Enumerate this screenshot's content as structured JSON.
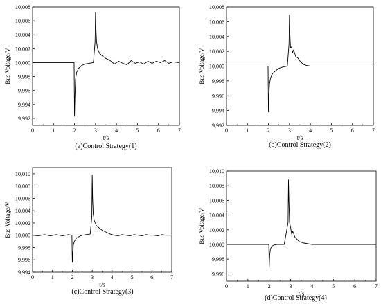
{
  "chart_data": [
    {
      "type": "line",
      "title": "(a)Control Strategy(1)",
      "xlabel": "t/s",
      "ylabel": "Bus Voltage/V",
      "xlim": [
        0,
        7
      ],
      "ylim": [
        9991,
        10008
      ],
      "x_ticks": [
        0,
        1,
        2,
        3,
        4,
        5,
        6,
        7
      ],
      "x_tick_labels": [
        "0",
        "1",
        "2",
        "3",
        "4",
        "5",
        "6",
        "7"
      ],
      "y_ticks": [
        9992,
        9994,
        9996,
        9998,
        10000,
        10002,
        10004,
        10006,
        10008
      ],
      "y_tick_labels": [
        "9,992",
        "9,994",
        "9,996",
        "9,998",
        "10,000",
        "10,002",
        "10,004",
        "10,006",
        "10,008"
      ],
      "series": [
        {
          "x": [
            0,
            1.98,
            1.99,
            2.0,
            2.02,
            2.05,
            2.1,
            2.2,
            2.35,
            2.5,
            2.7,
            2.9,
            2.98,
            3.0,
            3.02,
            3.05,
            3.1,
            3.2,
            3.35,
            3.5,
            3.7,
            3.9,
            4.1,
            4.3,
            4.5,
            4.7,
            4.9,
            5.1,
            5.3,
            5.5,
            5.7,
            5.9,
            6.1,
            6.3,
            6.5,
            6.7,
            7.0
          ],
          "y": [
            10000,
            10000,
            9996,
            9992.3,
            9995,
            9997.6,
            9998.6,
            9999.2,
            9999.6,
            9999.8,
            9999.9,
            10000,
            10003,
            10007.2,
            10005,
            10003,
            10002,
            10001.3,
            10000.9,
            10000.6,
            10000.3,
            9999.8,
            10000.2,
            9999.9,
            9999.7,
            10000.3,
            9999.9,
            10000.1,
            9999.8,
            10000.2,
            9999.9,
            10000.2,
            10000,
            10000.3,
            9999.9,
            10000.1,
            10000
          ]
        }
      ]
    },
    {
      "type": "line",
      "title": "(b)Control Strategy(2)",
      "xlabel": "t/s",
      "ylabel": "Bus Voltage/V",
      "xlim": [
        0,
        7
      ],
      "ylim": [
        9992,
        10008
      ],
      "x_ticks": [
        0,
        1,
        2,
        3,
        4,
        5,
        6,
        7
      ],
      "x_tick_labels": [
        "0",
        "1",
        "2",
        "3",
        "4",
        "5",
        "6",
        "7"
      ],
      "y_ticks": [
        9992,
        9994,
        9996,
        9998,
        10000,
        10002,
        10004,
        10006,
        10008
      ],
      "y_tick_labels": [
        "9,992",
        "9,994",
        "9,996",
        "9,998",
        "10,000",
        "10,002",
        "10,004",
        "10,006",
        "10,008"
      ],
      "series": [
        {
          "x": [
            0,
            1.98,
            1.99,
            2.0,
            2.02,
            2.05,
            2.1,
            2.2,
            2.35,
            2.5,
            2.7,
            2.9,
            2.98,
            3.0,
            3.02,
            3.05,
            3.1,
            3.15,
            3.2,
            3.3,
            3.4,
            3.5,
            3.6,
            3.7,
            3.8,
            4.0,
            4.5,
            5.0,
            6.0,
            7.0
          ],
          "y": [
            10000,
            10000,
            9997,
            9993.8,
            9996,
            9997.6,
            9998.4,
            9999,
            9999.4,
            9999.7,
            9999.9,
            10000,
            10003,
            10006.9,
            10004.5,
            10002.5,
            10002.6,
            10001.8,
            10002.2,
            10001.3,
            10001.1,
            10000.7,
            10000.4,
            10000.2,
            10000.1,
            10000,
            10000,
            10000,
            10000,
            10000
          ]
        }
      ]
    },
    {
      "type": "line",
      "title": "(c)Control Strategy(3)",
      "xlabel": "t/s",
      "ylabel": "Bus Voltage/V",
      "xlim": [
        0,
        7
      ],
      "ylim": [
        9994,
        10011
      ],
      "x_ticks": [
        0,
        1,
        2,
        3,
        4,
        5,
        6,
        7
      ],
      "x_tick_labels": [
        "0",
        "1",
        "2",
        "3",
        "4",
        "5",
        "6",
        "7"
      ],
      "y_ticks": [
        9994,
        9996,
        9998,
        10000,
        10002,
        10004,
        10006,
        10008,
        10010
      ],
      "y_tick_labels": [
        "9,994",
        "9,996",
        "9,998",
        "10,000",
        "10,002",
        "10,004",
        "10,006",
        "10,008",
        "10,010"
      ],
      "series": [
        {
          "x": [
            0,
            0.3,
            0.6,
            0.9,
            1.2,
            1.5,
            1.8,
            1.98,
            1.99,
            2.0,
            2.02,
            2.05,
            2.1,
            2.2,
            2.35,
            2.5,
            2.7,
            2.9,
            2.98,
            3.0,
            3.02,
            3.05,
            3.1,
            3.2,
            3.35,
            3.5,
            3.7,
            3.9,
            4.1,
            4.3,
            4.5,
            4.7,
            4.9,
            5.1,
            5.3,
            5.5,
            5.7,
            5.9,
            6.1,
            6.3,
            6.5,
            6.7,
            7.0
          ],
          "y": [
            10000,
            9999.9,
            10000.1,
            9999.9,
            10000.1,
            9999.9,
            10000.1,
            10000,
            9997.5,
            9995.6,
            9997,
            9998.4,
            9999,
            9999.5,
            9999.8,
            10000,
            10000.1,
            10000.2,
            10003,
            10009.8,
            10006,
            10003.5,
            10002.4,
            10001.6,
            10001.2,
            10000.8,
            10000.5,
            10000.2,
            10000,
            9999.9,
            10000.1,
            10000,
            9999.9,
            10000.1,
            10000,
            9999.9,
            10000.1,
            10000,
            10000,
            9999.9,
            10000.1,
            10000,
            10000
          ]
        }
      ]
    },
    {
      "type": "line",
      "title": "(d)Control Strategy(4)",
      "xlabel": "t/s",
      "ylabel": "Bus Voltage/V",
      "xlim": [
        0,
        7
      ],
      "ylim": [
        9995,
        10010
      ],
      "x_ticks": [
        0,
        1,
        2,
        3,
        4,
        5,
        6,
        7
      ],
      "x_tick_labels": [
        "0",
        "1",
        "2",
        "3",
        "4",
        "5",
        "6",
        "7"
      ],
      "y_ticks": [
        9996,
        9998,
        10000,
        10002,
        10004,
        10006,
        10008,
        10010
      ],
      "y_tick_labels": [
        "9,996",
        "9,998",
        "10,000",
        "10,002",
        "10,004",
        "10,006",
        "10,008",
        "10,010"
      ],
      "series": [
        {
          "x": [
            0,
            1.98,
            1.99,
            2.0,
            2.02,
            2.05,
            2.1,
            2.2,
            2.35,
            2.5,
            2.7,
            2.88,
            2.9,
            2.92,
            2.95,
            3.0,
            3.05,
            3.1,
            3.2,
            3.3,
            3.4,
            3.5,
            3.6,
            3.8,
            4.0,
            4.5,
            5.0,
            6.0,
            7.0
          ],
          "y": [
            10000,
            10000,
            9998.2,
            9996.9,
            9998.5,
            9999.3,
            9999.7,
            9999.9,
            10000,
            10000,
            10000,
            10003,
            10008.8,
            10006,
            10003,
            10002.3,
            10001.4,
            10001.8,
            10001,
            10000.7,
            10000.4,
            10000.3,
            10000.2,
            10000.1,
            10000,
            10000,
            10000,
            10000,
            10000
          ]
        }
      ]
    }
  ]
}
